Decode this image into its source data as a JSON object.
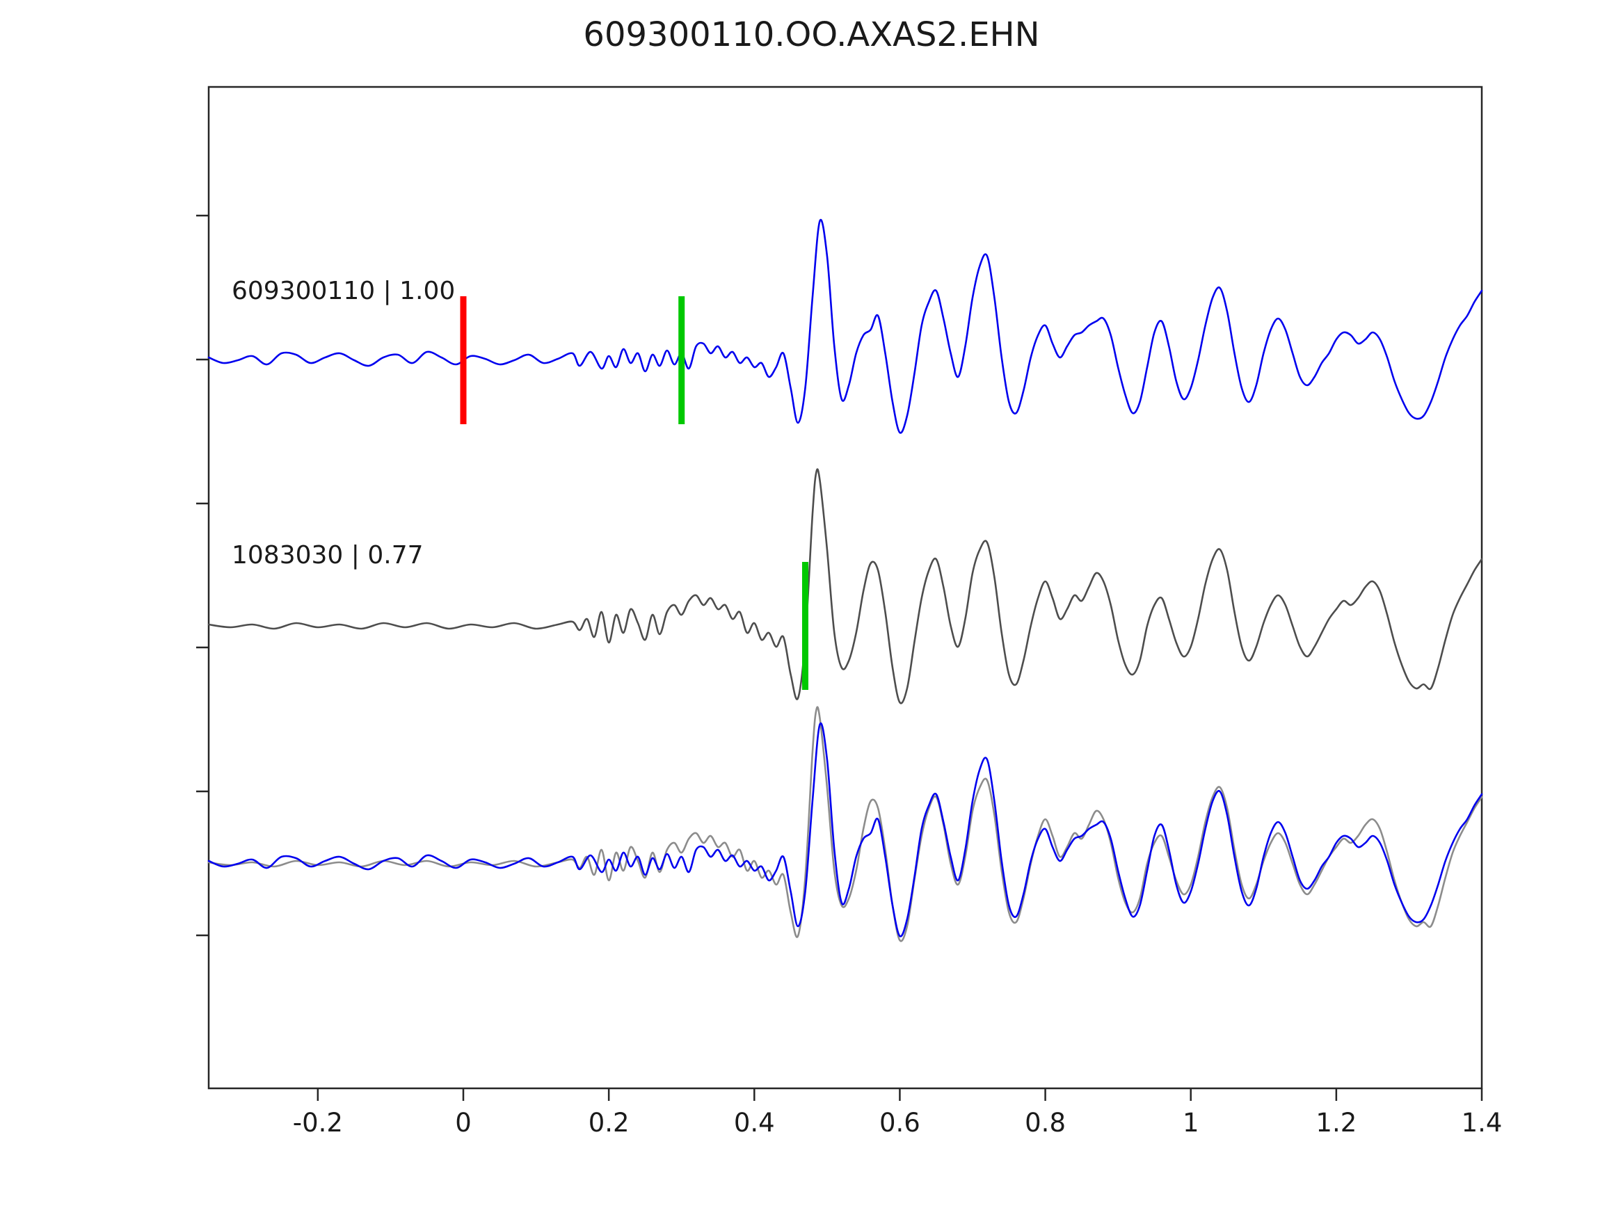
{
  "title": "609300110.OO.AXAS2.EHN",
  "colors": {
    "template_blue": "#0000ee",
    "detection_gray": "#4d4d4d",
    "overlay_gray": "#8c8c8c",
    "pick_red": "#ff0000",
    "pick_green": "#00c800",
    "axis": "#262626"
  },
  "chart_data": {
    "type": "line",
    "title": "609300110.OO.AXAS2.EHN",
    "xlabel": "",
    "ylabel": "",
    "xlim": [
      -0.35,
      1.4
    ],
    "grid": false,
    "legend_position": "none",
    "xticks": [
      -0.2,
      0,
      0.2,
      0.4,
      0.6,
      0.8,
      1,
      1.2,
      1.4
    ],
    "xtick_labels": [
      "-0.2",
      "0",
      "0.2",
      "0.4",
      "0.6",
      "0.8",
      "1",
      "1.2",
      "1.4"
    ],
    "panels": [
      {
        "label": "609300110 | 1.00",
        "traces": [
          {
            "series": "template"
          }
        ],
        "markers": [
          {
            "x": 0.0,
            "color": "#ff0000",
            "name": "template-origin-pick"
          },
          {
            "x": 0.3,
            "color": "#00c800",
            "name": "template-phase-pick"
          }
        ]
      },
      {
        "label": "1083030 | 0.77",
        "traces": [
          {
            "series": "detection"
          }
        ],
        "markers": [
          {
            "x": 0.47,
            "color": "#00c800",
            "name": "detection-phase-pick"
          }
        ]
      },
      {
        "label": "",
        "traces": [
          {
            "series": "detection",
            "color": "#8c8c8c"
          },
          {
            "series": "template"
          }
        ],
        "markers": []
      }
    ],
    "series": {
      "template": {
        "name": "609300110",
        "correlation": "1.00",
        "color": "#0000ee",
        "points": [
          [
            -0.35,
            0.02
          ],
          [
            -0.33,
            -0.02
          ],
          [
            -0.31,
            0.0
          ],
          [
            -0.29,
            0.03
          ],
          [
            -0.27,
            -0.03
          ],
          [
            -0.25,
            0.05
          ],
          [
            -0.23,
            0.04
          ],
          [
            -0.21,
            -0.02
          ],
          [
            -0.19,
            0.02
          ],
          [
            -0.17,
            0.05
          ],
          [
            -0.15,
            0.0
          ],
          [
            -0.13,
            -0.04
          ],
          [
            -0.11,
            0.02
          ],
          [
            -0.09,
            0.04
          ],
          [
            -0.07,
            -0.02
          ],
          [
            -0.05,
            0.06
          ],
          [
            -0.03,
            0.02
          ],
          [
            -0.01,
            -0.03
          ],
          [
            0.01,
            0.03
          ],
          [
            0.03,
            0.01
          ],
          [
            0.05,
            -0.03
          ],
          [
            0.07,
            0.0
          ],
          [
            0.09,
            0.04
          ],
          [
            0.11,
            -0.02
          ],
          [
            0.13,
            0.01
          ],
          [
            0.15,
            0.05
          ],
          [
            0.16,
            -0.04
          ],
          [
            0.175,
            0.06
          ],
          [
            0.19,
            -0.06
          ],
          [
            0.2,
            0.03
          ],
          [
            0.21,
            -0.05
          ],
          [
            0.22,
            0.08
          ],
          [
            0.23,
            -0.02
          ],
          [
            0.24,
            0.05
          ],
          [
            0.25,
            -0.08
          ],
          [
            0.26,
            0.04
          ],
          [
            0.27,
            -0.04
          ],
          [
            0.28,
            0.07
          ],
          [
            0.29,
            -0.03
          ],
          [
            0.3,
            0.05
          ],
          [
            0.31,
            -0.06
          ],
          [
            0.32,
            0.1
          ],
          [
            0.33,
            0.12
          ],
          [
            0.34,
            0.05
          ],
          [
            0.35,
            0.1
          ],
          [
            0.36,
            0.02
          ],
          [
            0.37,
            0.06
          ],
          [
            0.38,
            -0.02
          ],
          [
            0.39,
            0.02
          ],
          [
            0.4,
            -0.05
          ],
          [
            0.41,
            -0.02
          ],
          [
            0.42,
            -0.12
          ],
          [
            0.43,
            -0.05
          ],
          [
            0.44,
            0.05
          ],
          [
            0.45,
            -0.2
          ],
          [
            0.46,
            -0.45
          ],
          [
            0.47,
            -0.2
          ],
          [
            0.48,
            0.45
          ],
          [
            0.49,
            1.0
          ],
          [
            0.5,
            0.75
          ],
          [
            0.51,
            0.1
          ],
          [
            0.52,
            -0.28
          ],
          [
            0.53,
            -0.18
          ],
          [
            0.54,
            0.05
          ],
          [
            0.55,
            0.18
          ],
          [
            0.56,
            0.22
          ],
          [
            0.57,
            0.32
          ],
          [
            0.58,
            0.05
          ],
          [
            0.59,
            -0.3
          ],
          [
            0.6,
            -0.52
          ],
          [
            0.61,
            -0.4
          ],
          [
            0.62,
            -0.1
          ],
          [
            0.63,
            0.25
          ],
          [
            0.64,
            0.42
          ],
          [
            0.65,
            0.5
          ],
          [
            0.66,
            0.3
          ],
          [
            0.67,
            0.05
          ],
          [
            0.68,
            -0.12
          ],
          [
            0.69,
            0.1
          ],
          [
            0.7,
            0.45
          ],
          [
            0.71,
            0.68
          ],
          [
            0.72,
            0.75
          ],
          [
            0.73,
            0.45
          ],
          [
            0.74,
            0.02
          ],
          [
            0.75,
            -0.3
          ],
          [
            0.76,
            -0.38
          ],
          [
            0.77,
            -0.22
          ],
          [
            0.78,
            0.02
          ],
          [
            0.79,
            0.18
          ],
          [
            0.8,
            0.25
          ],
          [
            0.81,
            0.12
          ],
          [
            0.82,
            0.02
          ],
          [
            0.83,
            0.1
          ],
          [
            0.84,
            0.18
          ],
          [
            0.85,
            0.2
          ],
          [
            0.86,
            0.25
          ],
          [
            0.87,
            0.28
          ],
          [
            0.88,
            0.3
          ],
          [
            0.89,
            0.18
          ],
          [
            0.9,
            -0.05
          ],
          [
            0.91,
            -0.25
          ],
          [
            0.92,
            -0.38
          ],
          [
            0.93,
            -0.3
          ],
          [
            0.94,
            -0.05
          ],
          [
            0.95,
            0.2
          ],
          [
            0.96,
            0.28
          ],
          [
            0.97,
            0.1
          ],
          [
            0.98,
            -0.15
          ],
          [
            0.99,
            -0.28
          ],
          [
            1.0,
            -0.2
          ],
          [
            1.01,
            0.0
          ],
          [
            1.02,
            0.25
          ],
          [
            1.03,
            0.45
          ],
          [
            1.04,
            0.52
          ],
          [
            1.05,
            0.35
          ],
          [
            1.06,
            0.05
          ],
          [
            1.07,
            -0.2
          ],
          [
            1.08,
            -0.3
          ],
          [
            1.09,
            -0.18
          ],
          [
            1.1,
            0.05
          ],
          [
            1.11,
            0.22
          ],
          [
            1.12,
            0.3
          ],
          [
            1.13,
            0.22
          ],
          [
            1.14,
            0.05
          ],
          [
            1.15,
            -0.12
          ],
          [
            1.16,
            -0.18
          ],
          [
            1.17,
            -0.12
          ],
          [
            1.18,
            -0.02
          ],
          [
            1.19,
            0.05
          ],
          [
            1.2,
            0.15
          ],
          [
            1.21,
            0.2
          ],
          [
            1.22,
            0.18
          ],
          [
            1.23,
            0.12
          ],
          [
            1.24,
            0.15
          ],
          [
            1.25,
            0.2
          ],
          [
            1.26,
            0.15
          ],
          [
            1.27,
            0.02
          ],
          [
            1.28,
            -0.15
          ],
          [
            1.29,
            -0.28
          ],
          [
            1.3,
            -0.38
          ],
          [
            1.31,
            -0.42
          ],
          [
            1.32,
            -0.4
          ],
          [
            1.33,
            -0.3
          ],
          [
            1.34,
            -0.15
          ],
          [
            1.35,
            0.02
          ],
          [
            1.36,
            0.15
          ],
          [
            1.37,
            0.25
          ],
          [
            1.38,
            0.32
          ],
          [
            1.39,
            0.42
          ],
          [
            1.4,
            0.5
          ]
        ]
      },
      "detection": {
        "name": "1083030",
        "correlation": "0.77",
        "color": "#4d4d4d",
        "points": [
          [
            -0.35,
            0.01
          ],
          [
            -0.32,
            -0.01
          ],
          [
            -0.29,
            0.01
          ],
          [
            -0.26,
            -0.02
          ],
          [
            -0.23,
            0.02
          ],
          [
            -0.2,
            -0.01
          ],
          [
            -0.17,
            0.01
          ],
          [
            -0.14,
            -0.02
          ],
          [
            -0.11,
            0.02
          ],
          [
            -0.08,
            -0.01
          ],
          [
            -0.05,
            0.02
          ],
          [
            -0.02,
            -0.02
          ],
          [
            0.01,
            0.01
          ],
          [
            0.04,
            -0.01
          ],
          [
            0.07,
            0.02
          ],
          [
            0.1,
            -0.02
          ],
          [
            0.13,
            0.01
          ],
          [
            0.15,
            0.03
          ],
          [
            0.16,
            -0.03
          ],
          [
            0.17,
            0.05
          ],
          [
            0.18,
            -0.08
          ],
          [
            0.19,
            0.1
          ],
          [
            0.2,
            -0.12
          ],
          [
            0.21,
            0.08
          ],
          [
            0.22,
            -0.05
          ],
          [
            0.23,
            0.12
          ],
          [
            0.24,
            0.02
          ],
          [
            0.25,
            -0.1
          ],
          [
            0.26,
            0.08
          ],
          [
            0.27,
            -0.06
          ],
          [
            0.28,
            0.1
          ],
          [
            0.29,
            0.15
          ],
          [
            0.3,
            0.08
          ],
          [
            0.31,
            0.18
          ],
          [
            0.32,
            0.22
          ],
          [
            0.33,
            0.15
          ],
          [
            0.34,
            0.2
          ],
          [
            0.35,
            0.12
          ],
          [
            0.36,
            0.15
          ],
          [
            0.37,
            0.05
          ],
          [
            0.38,
            0.1
          ],
          [
            0.39,
            -0.05
          ],
          [
            0.4,
            0.02
          ],
          [
            0.41,
            -0.1
          ],
          [
            0.42,
            -0.05
          ],
          [
            0.43,
            -0.15
          ],
          [
            0.44,
            -0.08
          ],
          [
            0.45,
            -0.35
          ],
          [
            0.46,
            -0.52
          ],
          [
            0.47,
            -0.1
          ],
          [
            0.48,
            0.8
          ],
          [
            0.485,
            1.1
          ],
          [
            0.49,
            1.05
          ],
          [
            0.5,
            0.55
          ],
          [
            0.51,
            -0.05
          ],
          [
            0.52,
            -0.3
          ],
          [
            0.53,
            -0.25
          ],
          [
            0.54,
            -0.05
          ],
          [
            0.55,
            0.25
          ],
          [
            0.56,
            0.45
          ],
          [
            0.57,
            0.4
          ],
          [
            0.58,
            0.1
          ],
          [
            0.59,
            -0.3
          ],
          [
            0.6,
            -0.55
          ],
          [
            0.61,
            -0.45
          ],
          [
            0.62,
            -0.12
          ],
          [
            0.63,
            0.2
          ],
          [
            0.64,
            0.4
          ],
          [
            0.65,
            0.48
          ],
          [
            0.66,
            0.28
          ],
          [
            0.67,
            0.0
          ],
          [
            0.68,
            -0.15
          ],
          [
            0.69,
            0.05
          ],
          [
            0.7,
            0.38
          ],
          [
            0.71,
            0.55
          ],
          [
            0.72,
            0.6
          ],
          [
            0.73,
            0.35
          ],
          [
            0.74,
            -0.05
          ],
          [
            0.75,
            -0.35
          ],
          [
            0.76,
            -0.42
          ],
          [
            0.77,
            -0.25
          ],
          [
            0.78,
            0.0
          ],
          [
            0.79,
            0.2
          ],
          [
            0.8,
            0.32
          ],
          [
            0.81,
            0.2
          ],
          [
            0.82,
            0.05
          ],
          [
            0.83,
            0.12
          ],
          [
            0.84,
            0.22
          ],
          [
            0.85,
            0.18
          ],
          [
            0.86,
            0.28
          ],
          [
            0.87,
            0.38
          ],
          [
            0.88,
            0.32
          ],
          [
            0.89,
            0.15
          ],
          [
            0.9,
            -0.1
          ],
          [
            0.91,
            -0.28
          ],
          [
            0.92,
            -0.35
          ],
          [
            0.93,
            -0.25
          ],
          [
            0.94,
            0.0
          ],
          [
            0.95,
            0.15
          ],
          [
            0.96,
            0.2
          ],
          [
            0.97,
            0.05
          ],
          [
            0.98,
            -0.12
          ],
          [
            0.99,
            -0.22
          ],
          [
            1.0,
            -0.15
          ],
          [
            1.01,
            0.05
          ],
          [
            1.02,
            0.3
          ],
          [
            1.03,
            0.48
          ],
          [
            1.04,
            0.55
          ],
          [
            1.05,
            0.4
          ],
          [
            1.06,
            0.1
          ],
          [
            1.07,
            -0.15
          ],
          [
            1.08,
            -0.25
          ],
          [
            1.09,
            -0.15
          ],
          [
            1.1,
            0.02
          ],
          [
            1.11,
            0.15
          ],
          [
            1.12,
            0.22
          ],
          [
            1.13,
            0.15
          ],
          [
            1.14,
            0.0
          ],
          [
            1.15,
            -0.15
          ],
          [
            1.16,
            -0.22
          ],
          [
            1.17,
            -0.15
          ],
          [
            1.18,
            -0.05
          ],
          [
            1.19,
            0.05
          ],
          [
            1.2,
            0.12
          ],
          [
            1.21,
            0.18
          ],
          [
            1.22,
            0.15
          ],
          [
            1.23,
            0.2
          ],
          [
            1.24,
            0.28
          ],
          [
            1.25,
            0.32
          ],
          [
            1.26,
            0.25
          ],
          [
            1.27,
            0.08
          ],
          [
            1.28,
            -0.12
          ],
          [
            1.29,
            -0.28
          ],
          [
            1.3,
            -0.4
          ],
          [
            1.31,
            -0.45
          ],
          [
            1.32,
            -0.42
          ],
          [
            1.33,
            -0.45
          ],
          [
            1.34,
            -0.3
          ],
          [
            1.35,
            -0.1
          ],
          [
            1.36,
            0.08
          ],
          [
            1.37,
            0.2
          ],
          [
            1.38,
            0.3
          ],
          [
            1.39,
            0.4
          ],
          [
            1.4,
            0.48
          ]
        ]
      }
    }
  }
}
